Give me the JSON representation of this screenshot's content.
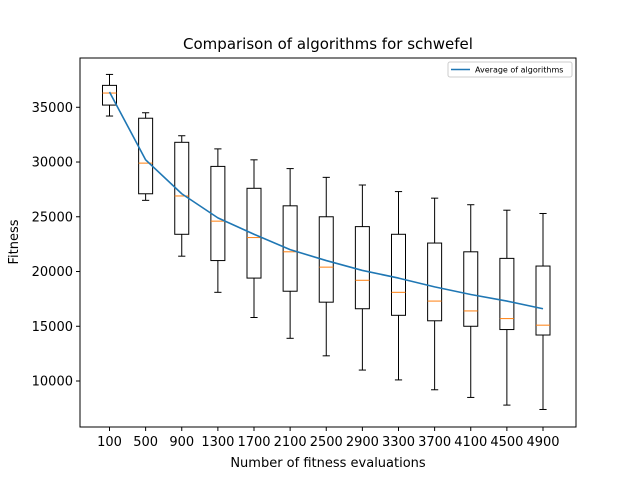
{
  "chart_data": {
    "type": "box",
    "title": "Comparison of algorithms for schwefel",
    "xlabel": "Number of fitness evaluations",
    "ylabel": "Fitness",
    "categories": [
      "100",
      "500",
      "900",
      "1300",
      "1700",
      "2100",
      "2500",
      "2900",
      "3300",
      "3700",
      "4100",
      "4500",
      "4900"
    ],
    "ylim": [
      5800,
      39500
    ],
    "yticks": [
      10000,
      15000,
      20000,
      25000,
      30000,
      35000
    ],
    "ytick_labels": [
      "10000",
      "15000",
      "20000",
      "25000",
      "30000",
      "35000"
    ],
    "grid": false,
    "legend": {
      "position": "top-right",
      "entries": [
        "Average of algorithms"
      ]
    },
    "boxes": [
      {
        "x": "100",
        "whisker_low": 34200,
        "q1": 35200,
        "median": 36300,
        "q3": 37000,
        "whisker_high": 38000
      },
      {
        "x": "500",
        "whisker_low": 26500,
        "q1": 27100,
        "median": 29900,
        "q3": 34000,
        "whisker_high": 34500
      },
      {
        "x": "900",
        "whisker_low": 21400,
        "q1": 23400,
        "median": 26900,
        "q3": 31800,
        "whisker_high": 32400
      },
      {
        "x": "1300",
        "whisker_low": 18100,
        "q1": 21000,
        "median": 24600,
        "q3": 29600,
        "whisker_high": 31200
      },
      {
        "x": "1700",
        "whisker_low": 15800,
        "q1": 19400,
        "median": 23100,
        "q3": 27600,
        "whisker_high": 30200
      },
      {
        "x": "2100",
        "whisker_low": 13900,
        "q1": 18200,
        "median": 21800,
        "q3": 26000,
        "whisker_high": 29400
      },
      {
        "x": "2500",
        "whisker_low": 12300,
        "q1": 17200,
        "median": 20400,
        "q3": 25000,
        "whisker_high": 28600
      },
      {
        "x": "2900",
        "whisker_low": 11000,
        "q1": 16600,
        "median": 19200,
        "q3": 24100,
        "whisker_high": 27900
      },
      {
        "x": "3300",
        "whisker_low": 10100,
        "q1": 16000,
        "median": 18100,
        "q3": 23400,
        "whisker_high": 27300
      },
      {
        "x": "3700",
        "whisker_low": 9200,
        "q1": 15500,
        "median": 17300,
        "q3": 22600,
        "whisker_high": 26700
      },
      {
        "x": "4100",
        "whisker_low": 8500,
        "q1": 15000,
        "median": 16400,
        "q3": 21800,
        "whisker_high": 26100
      },
      {
        "x": "4500",
        "whisker_low": 7800,
        "q1": 14700,
        "median": 15700,
        "q3": 21200,
        "whisker_high": 25600
      },
      {
        "x": "4900",
        "whisker_low": 7400,
        "q1": 14200,
        "median": 15100,
        "q3": 20500,
        "whisker_high": 25300
      }
    ],
    "series": [
      {
        "name": "Average of algorithms",
        "type": "line",
        "color": "#1f77b4",
        "x": [
          "100",
          "500",
          "900",
          "1300",
          "1700",
          "2100",
          "2500",
          "2900",
          "3300",
          "3700",
          "4100",
          "4500",
          "4900"
        ],
        "values": [
          36400,
          30200,
          27100,
          24900,
          23400,
          22000,
          21000,
          20100,
          19400,
          18600,
          17900,
          17300,
          16600
        ]
      }
    ],
    "colors": {
      "box": "#000000",
      "median": "#ff7f0e",
      "line": "#1f77b4"
    }
  }
}
